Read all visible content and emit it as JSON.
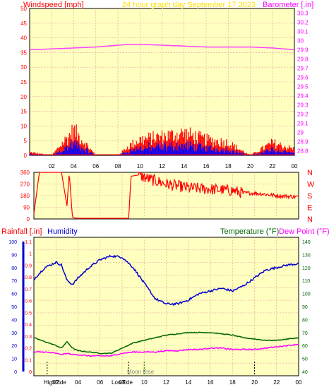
{
  "header": {
    "left_label": "Windspeed [mph]",
    "title": "24 hour graph day   September 17 2023",
    "right_label": "Barometer [.in]"
  },
  "wind_axis": {
    "left_ticks": [
      "50",
      "45",
      "40",
      "35",
      "30",
      "25",
      "20",
      "15",
      "10",
      "5",
      "0"
    ],
    "right_ticks": [
      "30.3",
      "30.2",
      "30.1",
      "30",
      "29.9",
      "29.8",
      "29.7",
      "29.6",
      "29.5",
      "29.4",
      "29.3",
      "29.2",
      "29.1",
      "29",
      "28.9",
      "28.8"
    ],
    "x_ticks": [
      "02",
      "04",
      "06",
      "08",
      "10",
      "12",
      "14",
      "16",
      "18",
      "20",
      "22",
      "00"
    ]
  },
  "dir_axis": {
    "left_ticks": [
      "360",
      "270",
      "180",
      "90",
      "0"
    ],
    "right_ticks": [
      "N",
      "W",
      "S",
      "E",
      "N"
    ]
  },
  "bottom_header": {
    "rain_label": "Rainfall [.in]",
    "humidity_label": "Humidity",
    "temp_label": "Temperature (°F)",
    "dew_label": "Dew Point (°F)"
  },
  "bottom_axis": {
    "humidity_ticks": [
      "100",
      "90",
      "80",
      "70",
      "60",
      "50",
      "40",
      "30",
      "20",
      "10",
      "0"
    ],
    "rain_ticks": [
      "1.1",
      "1",
      "0.9",
      "0.8",
      "0.7",
      "0.6",
      "0.5",
      "0.4",
      "0.3",
      "0.2",
      "0.1",
      "0"
    ],
    "temp_ticks": [
      "140",
      "130",
      "120",
      "110",
      "100",
      "90",
      "80",
      "70",
      "60",
      "50",
      "40"
    ],
    "x_ticks": [
      "02",
      "04",
      "06",
      "08",
      "10",
      "12",
      "14",
      "16",
      "18",
      "20",
      "22",
      "00"
    ]
  },
  "annotations": {
    "high_tide": "HighTide",
    "low_tide": "LowTide",
    "moon_rise": "Moon Rise"
  },
  "colors": {
    "plot_bg": "#ffffc0",
    "wind_gust": "#ff0000",
    "wind_avg": "#0000ff",
    "barometer": "#ff40ff",
    "wind_dir": "#ff0000",
    "humidity": "#0000cc",
    "temperature": "#006600",
    "dew_point": "#ff00ff",
    "title_color": "#ffe000",
    "label_red": "#ff0000",
    "label_blue": "#0000cc",
    "label_green": "#006600",
    "label_magenta": "#ff00ff"
  },
  "chart_data": [
    {
      "type": "line",
      "x_hours": [
        0,
        2,
        4,
        6,
        8,
        9,
        10,
        12,
        14,
        16,
        18,
        20,
        22,
        24
      ],
      "series": [
        {
          "name": "Barometer [.in]",
          "axis": "right",
          "values": [
            29.9,
            29.91,
            29.92,
            29.93,
            29.95,
            29.96,
            29.96,
            29.95,
            29.94,
            29.93,
            29.93,
            29.93,
            29.92,
            29.9
          ]
        },
        {
          "name": "Windspeed [mph]",
          "axis": "left",
          "values": [
            1,
            0,
            8,
            0,
            0,
            3,
            5,
            6,
            7,
            5,
            4,
            0,
            4,
            2
          ]
        }
      ],
      "title": "24 hour graph day   September 17 2023",
      "ylabel": "Windspeed [mph]",
      "y2label": "Barometer [.in]",
      "ylim": [
        0,
        50
      ],
      "y2lim": [
        28.75,
        30.35
      ]
    },
    {
      "type": "line",
      "x_hours": [
        0,
        0.5,
        2.5,
        3,
        3.2,
        3.5,
        4,
        8,
        8.6,
        8.8,
        9.5,
        10,
        12,
        14,
        16,
        18,
        19,
        20,
        22,
        24
      ],
      "series": [
        {
          "name": "Wind direction",
          "values": [
            40,
            360,
            360,
            100,
            360,
            10,
            5,
            5,
            5,
            330,
            340,
            320,
            270,
            240,
            230,
            220,
            200,
            200,
            180,
            170
          ]
        }
      ],
      "ylim": [
        0,
        360
      ]
    },
    {
      "type": "line",
      "x_hours": [
        0,
        1,
        2,
        2.5,
        3,
        3.5,
        4,
        5,
        6,
        7,
        8,
        9,
        10,
        11,
        12,
        13,
        14,
        15,
        16,
        17,
        18,
        19,
        20,
        21,
        22,
        23,
        24
      ],
      "series": [
        {
          "name": "Humidity",
          "axis": "humidity",
          "values": [
            71,
            80,
            84,
            82,
            70,
            67,
            72,
            80,
            86,
            89,
            88,
            80,
            68,
            56,
            52,
            52,
            55,
            60,
            62,
            64,
            62,
            66,
            72,
            78,
            80,
            82,
            83
          ]
        },
        {
          "name": "Temperature (°F)",
          "axis": "temp",
          "values": [
            66,
            63,
            60,
            58,
            63,
            58,
            56,
            55,
            54,
            54,
            58,
            62,
            64,
            66,
            68,
            69,
            70,
            70,
            70,
            69,
            68,
            66,
            65,
            64,
            64,
            65,
            66
          ]
        },
        {
          "name": "Dew Point (°F)",
          "axis": "temp",
          "values": [
            55,
            55,
            54,
            53,
            54,
            53,
            53,
            52,
            52,
            52,
            54,
            55,
            55,
            55,
            56,
            56,
            57,
            57,
            58,
            58,
            57,
            57,
            57,
            58,
            59,
            60,
            61
          ]
        },
        {
          "name": "Rainfall [.in]",
          "axis": "rain",
          "values": [
            0,
            0,
            0,
            0,
            0,
            0,
            0,
            0,
            0,
            0,
            0,
            0,
            0,
            0,
            0,
            0,
            0,
            0,
            0,
            0,
            0,
            0,
            0,
            0,
            0,
            0,
            0
          ]
        }
      ],
      "ylabel": "Humidity",
      "humidity_lim": [
        0,
        100
      ],
      "rain_lim": [
        0,
        1.1
      ],
      "temp_lim": [
        40,
        140
      ]
    }
  ]
}
